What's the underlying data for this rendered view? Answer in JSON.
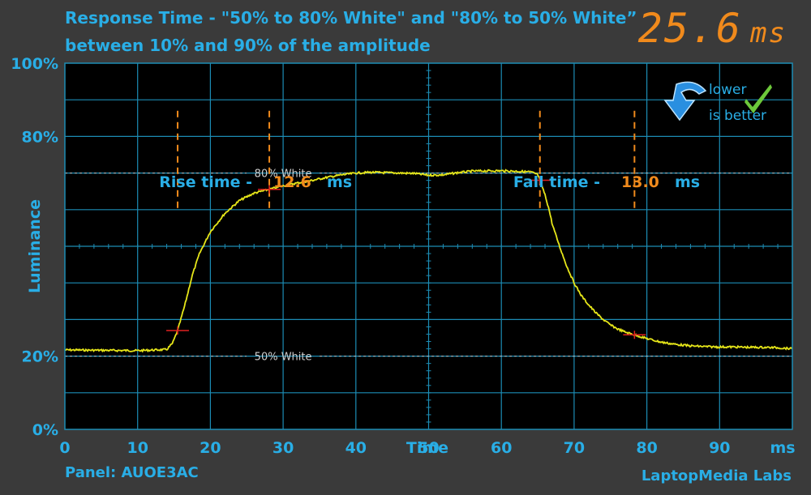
{
  "header": {
    "title_line1": "Response Time - \"50% to 80% White\" and \"80% to 50% White”",
    "title_line2": "between 10% and 90% of the amplitude",
    "total_value": "25.6",
    "total_unit": "ms"
  },
  "footer": {
    "panel": "Panel: AUOE3AC",
    "brand": "LaptopMedia Labs"
  },
  "badge": {
    "line1": "lower",
    "line2": "is better"
  },
  "colors": {
    "background": "#3a3a3a",
    "plot_bg": "#000000",
    "grid": "#1c8cb4",
    "axis_text": "#29aee6",
    "accent": "#f08a1c",
    "signal": "#e6e619",
    "marker": "#e02020"
  },
  "chart_data": {
    "type": "line",
    "title": "Response Time - \"50% to 80% White\" and \"80% to 50% White” between 10% and 90% of the amplitude",
    "xlabel": "Time",
    "xunit": "ms",
    "ylabel": "Luminance",
    "xlim": [
      0,
      100
    ],
    "ylim": [
      0,
      100
    ],
    "x_ticks": [
      0,
      10,
      20,
      30,
      40,
      50,
      60,
      70,
      80,
      90
    ],
    "y_tick_labels": [
      {
        "value": 100,
        "label": "100%"
      },
      {
        "value": 80,
        "label": "80%"
      },
      {
        "value": 20,
        "label": "20%"
      },
      {
        "value": 0,
        "label": "0%"
      }
    ],
    "grid": true,
    "reference_lines": [
      {
        "label": "80% White",
        "y": 70
      },
      {
        "label": "50% White",
        "y": 20
      }
    ],
    "rise": {
      "label": "Rise time - ",
      "value": "12.6",
      "unit": "ms",
      "start": 15.5,
      "end": 28.1
    },
    "fall": {
      "label": "Fall time - ",
      "value": "13.0",
      "unit": "ms",
      "start": 65.3,
      "end": 78.3
    },
    "series": [
      {
        "x": [
          0,
          5,
          10,
          14,
          14.8,
          15.5,
          16.5,
          17.5,
          18.5,
          20,
          22,
          24,
          26,
          28,
          30,
          32,
          34,
          36,
          38,
          40,
          42,
          44,
          46,
          48,
          50,
          52,
          54,
          56,
          58,
          60,
          62,
          64,
          65,
          65.5,
          66,
          66.5,
          67,
          68,
          69,
          70,
          71,
          72,
          73,
          74,
          75,
          76,
          77,
          78,
          80,
          82,
          84,
          86,
          88,
          90,
          92,
          94,
          96,
          98,
          100
        ],
        "y": [
          21.7,
          21.6,
          21.5,
          21.8,
          23.5,
          27,
          34,
          42,
          48,
          54,
          59,
          62.5,
          64.5,
          65.5,
          66.5,
          67.3,
          68,
          68.8,
          69.5,
          70,
          70.2,
          70.1,
          70,
          69.9,
          69.4,
          69.5,
          70.1,
          70.5,
          70.6,
          70.6,
          70.5,
          70.3,
          69.6,
          67,
          64,
          60.5,
          56,
          50,
          44.5,
          40,
          36.5,
          34,
          31.8,
          30,
          28.5,
          27.4,
          26.6,
          26,
          24.8,
          23.8,
          23.2,
          22.8,
          22.6,
          22.5,
          22.5,
          22.4,
          22.4,
          22.3,
          22
        ]
      }
    ]
  }
}
